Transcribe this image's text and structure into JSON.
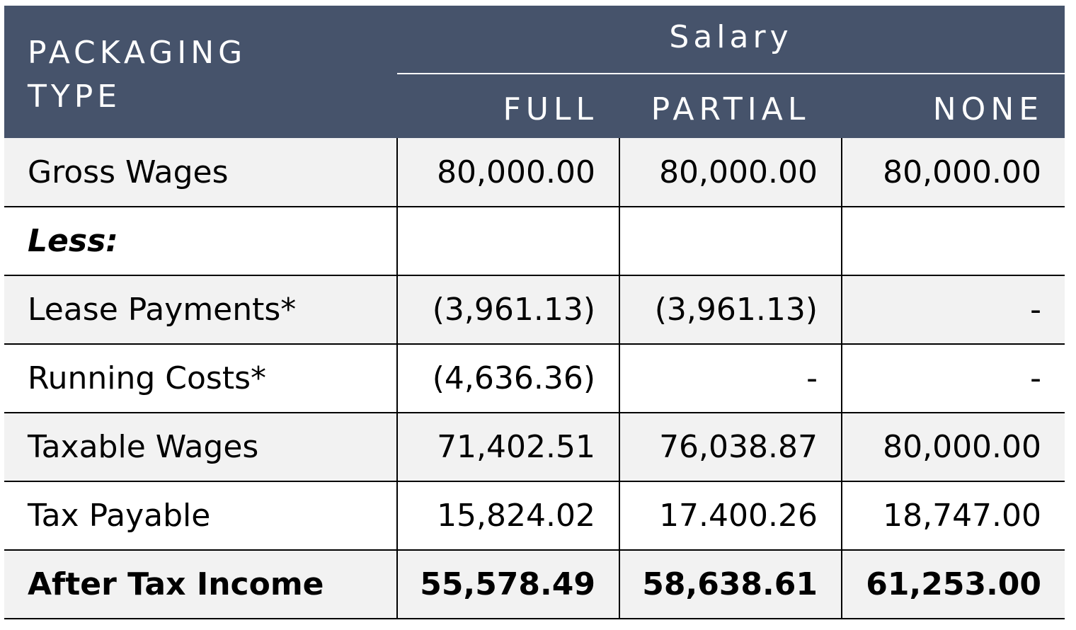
{
  "header": {
    "packaging_type_line1": "PACKAGING",
    "packaging_type_line2": "TYPE",
    "group_label": "Salary",
    "columns": [
      "FULL",
      "PARTIAL",
      "NONE"
    ]
  },
  "rows": [
    {
      "label": "Gross Wages",
      "values": [
        "80,000.00",
        "80,000.00",
        "80,000.00"
      ]
    },
    {
      "label": "Less:",
      "values": [
        "",
        "",
        ""
      ]
    },
    {
      "label": "Lease Payments*",
      "values": [
        "(3,961.13)",
        "(3,961.13)",
        "-"
      ]
    },
    {
      "label": "Running Costs*",
      "values": [
        "(4,636.36)",
        "-",
        "-"
      ]
    },
    {
      "label": "Taxable Wages",
      "values": [
        "71,402.51",
        "76,038.87",
        "80,000.00"
      ]
    },
    {
      "label": "Tax Payable",
      "values": [
        "15,824.02",
        "17.400.26",
        "18,747.00"
      ]
    },
    {
      "label": "After Tax Income",
      "values": [
        "55,578.49",
        "58,638.61",
        "61,253.00"
      ]
    }
  ],
  "colors": {
    "header_bg": "#46536b",
    "header_text": "#ffffff",
    "shaded_row": "#f2f2f2"
  }
}
